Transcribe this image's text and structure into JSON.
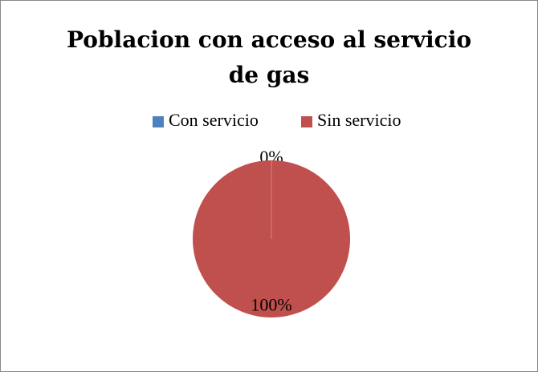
{
  "chart_data": {
    "type": "pie",
    "title": "Poblacion con acceso al servicio de gas",
    "categories": [
      "Con servicio",
      "Sin servicio"
    ],
    "values": [
      0,
      100
    ],
    "value_labels": [
      "0%",
      "100%"
    ],
    "colors": [
      "#4f81bd",
      "#c0504d"
    ],
    "legend": "top"
  }
}
